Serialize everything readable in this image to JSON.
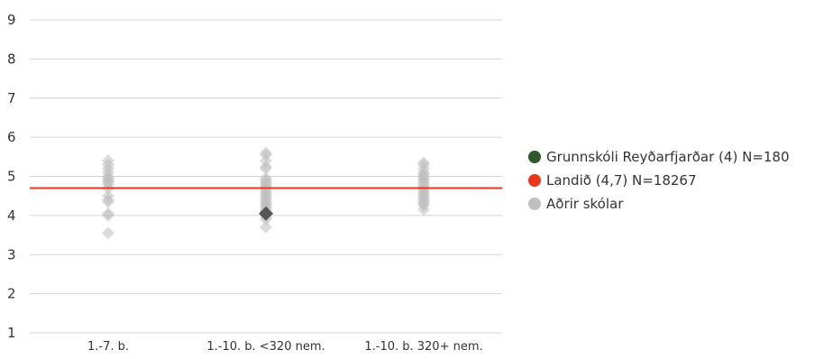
{
  "chart_data": {
    "type": "scatter",
    "title": "",
    "xlabel": "",
    "ylabel": "",
    "ylim": [
      1,
      9
    ],
    "yticks": [
      "1",
      "2",
      "3",
      "4",
      "5",
      "6",
      "7",
      "8",
      "9"
    ],
    "grid": true,
    "legend_position": "right",
    "categories": [
      "1.-7. b.",
      "1.-10. b. <320 nem.",
      "1.-10. b. 320+ nem."
    ],
    "reference_line": {
      "value": 4.7,
      "color": "#e8371e"
    },
    "series": [
      {
        "name": "Aðrir skólar",
        "color": "#c0c0c0",
        "points": [
          {
            "category": 0,
            "value": 5.4
          },
          {
            "category": 0,
            "value": 5.3
          },
          {
            "category": 0,
            "value": 5.2
          },
          {
            "category": 0,
            "value": 5.1
          },
          {
            "category": 0,
            "value": 5.0
          },
          {
            "category": 0,
            "value": 4.95
          },
          {
            "category": 0,
            "value": 4.9
          },
          {
            "category": 0,
            "value": 4.85
          },
          {
            "category": 0,
            "value": 4.8
          },
          {
            "category": 0,
            "value": 4.7
          },
          {
            "category": 0,
            "value": 4.5
          },
          {
            "category": 0,
            "value": 4.4
          },
          {
            "category": 0,
            "value": 4.35
          },
          {
            "category": 0,
            "value": 4.05
          },
          {
            "category": 0,
            "value": 4.0
          },
          {
            "category": 0,
            "value": 3.55
          },
          {
            "category": 1,
            "value": 5.6
          },
          {
            "category": 1,
            "value": 5.55
          },
          {
            "category": 1,
            "value": 5.4
          },
          {
            "category": 1,
            "value": 5.25
          },
          {
            "category": 1,
            "value": 5.2
          },
          {
            "category": 1,
            "value": 4.95
          },
          {
            "category": 1,
            "value": 4.9
          },
          {
            "category": 1,
            "value": 4.85
          },
          {
            "category": 1,
            "value": 4.8
          },
          {
            "category": 1,
            "value": 4.75
          },
          {
            "category": 1,
            "value": 4.7
          },
          {
            "category": 1,
            "value": 4.65
          },
          {
            "category": 1,
            "value": 4.6
          },
          {
            "category": 1,
            "value": 4.55
          },
          {
            "category": 1,
            "value": 4.5
          },
          {
            "category": 1,
            "value": 4.45
          },
          {
            "category": 1,
            "value": 4.4
          },
          {
            "category": 1,
            "value": 4.35
          },
          {
            "category": 1,
            "value": 4.3
          },
          {
            "category": 1,
            "value": 4.25
          },
          {
            "category": 1,
            "value": 4.2
          },
          {
            "category": 1,
            "value": 4.15
          },
          {
            "category": 1,
            "value": 4.1
          },
          {
            "category": 1,
            "value": 3.95
          },
          {
            "category": 1,
            "value": 3.9
          },
          {
            "category": 1,
            "value": 3.7
          },
          {
            "category": 2,
            "value": 5.35
          },
          {
            "category": 2,
            "value": 5.3
          },
          {
            "category": 2,
            "value": 5.2
          },
          {
            "category": 2,
            "value": 5.1
          },
          {
            "category": 2,
            "value": 5.05
          },
          {
            "category": 2,
            "value": 5.0
          },
          {
            "category": 2,
            "value": 4.95
          },
          {
            "category": 2,
            "value": 4.9
          },
          {
            "category": 2,
            "value": 4.85
          },
          {
            "category": 2,
            "value": 4.8
          },
          {
            "category": 2,
            "value": 4.75
          },
          {
            "category": 2,
            "value": 4.7
          },
          {
            "category": 2,
            "value": 4.65
          },
          {
            "category": 2,
            "value": 4.6
          },
          {
            "category": 2,
            "value": 4.55
          },
          {
            "category": 2,
            "value": 4.5
          },
          {
            "category": 2,
            "value": 4.45
          },
          {
            "category": 2,
            "value": 4.4
          },
          {
            "category": 2,
            "value": 4.35
          },
          {
            "category": 2,
            "value": 4.3
          },
          {
            "category": 2,
            "value": 4.25
          },
          {
            "category": 2,
            "value": 4.15
          }
        ]
      },
      {
        "name": "Grunnskóli Reyðarfjarðar (4) N=180",
        "color": "#555555",
        "legend_color": "#2d5a2b",
        "points": [
          {
            "category": 1,
            "value": 4.05
          }
        ]
      }
    ],
    "legend": [
      {
        "label": "Grunnskóli Reyðarfjarðar (4) N=180",
        "color": "#2d5a2b"
      },
      {
        "label": "Landið (4,7) N=18267",
        "color": "#e8371e"
      },
      {
        "label": "Aðrir skólar",
        "color": "#c0c0c0"
      }
    ]
  }
}
